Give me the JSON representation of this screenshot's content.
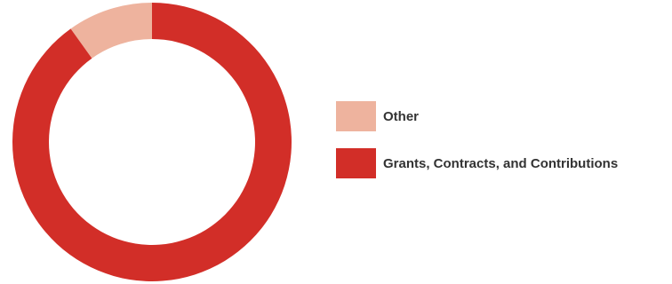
{
  "chart_data": {
    "type": "pie",
    "variant": "donut",
    "title": "",
    "categories": [
      "Other",
      "Grants, Contracts, and Contributions"
    ],
    "values": [
      9.9,
      90.1
    ],
    "unit": "percent",
    "legend_placement": "right",
    "colors": [
      "#eeb39e",
      "#d22e28"
    ],
    "legend": [
      {
        "label": "Other",
        "color": "#eeb39e"
      },
      {
        "label": "Grants, Contracts, and Contributions",
        "color": "#d22e28"
      }
    ]
  }
}
